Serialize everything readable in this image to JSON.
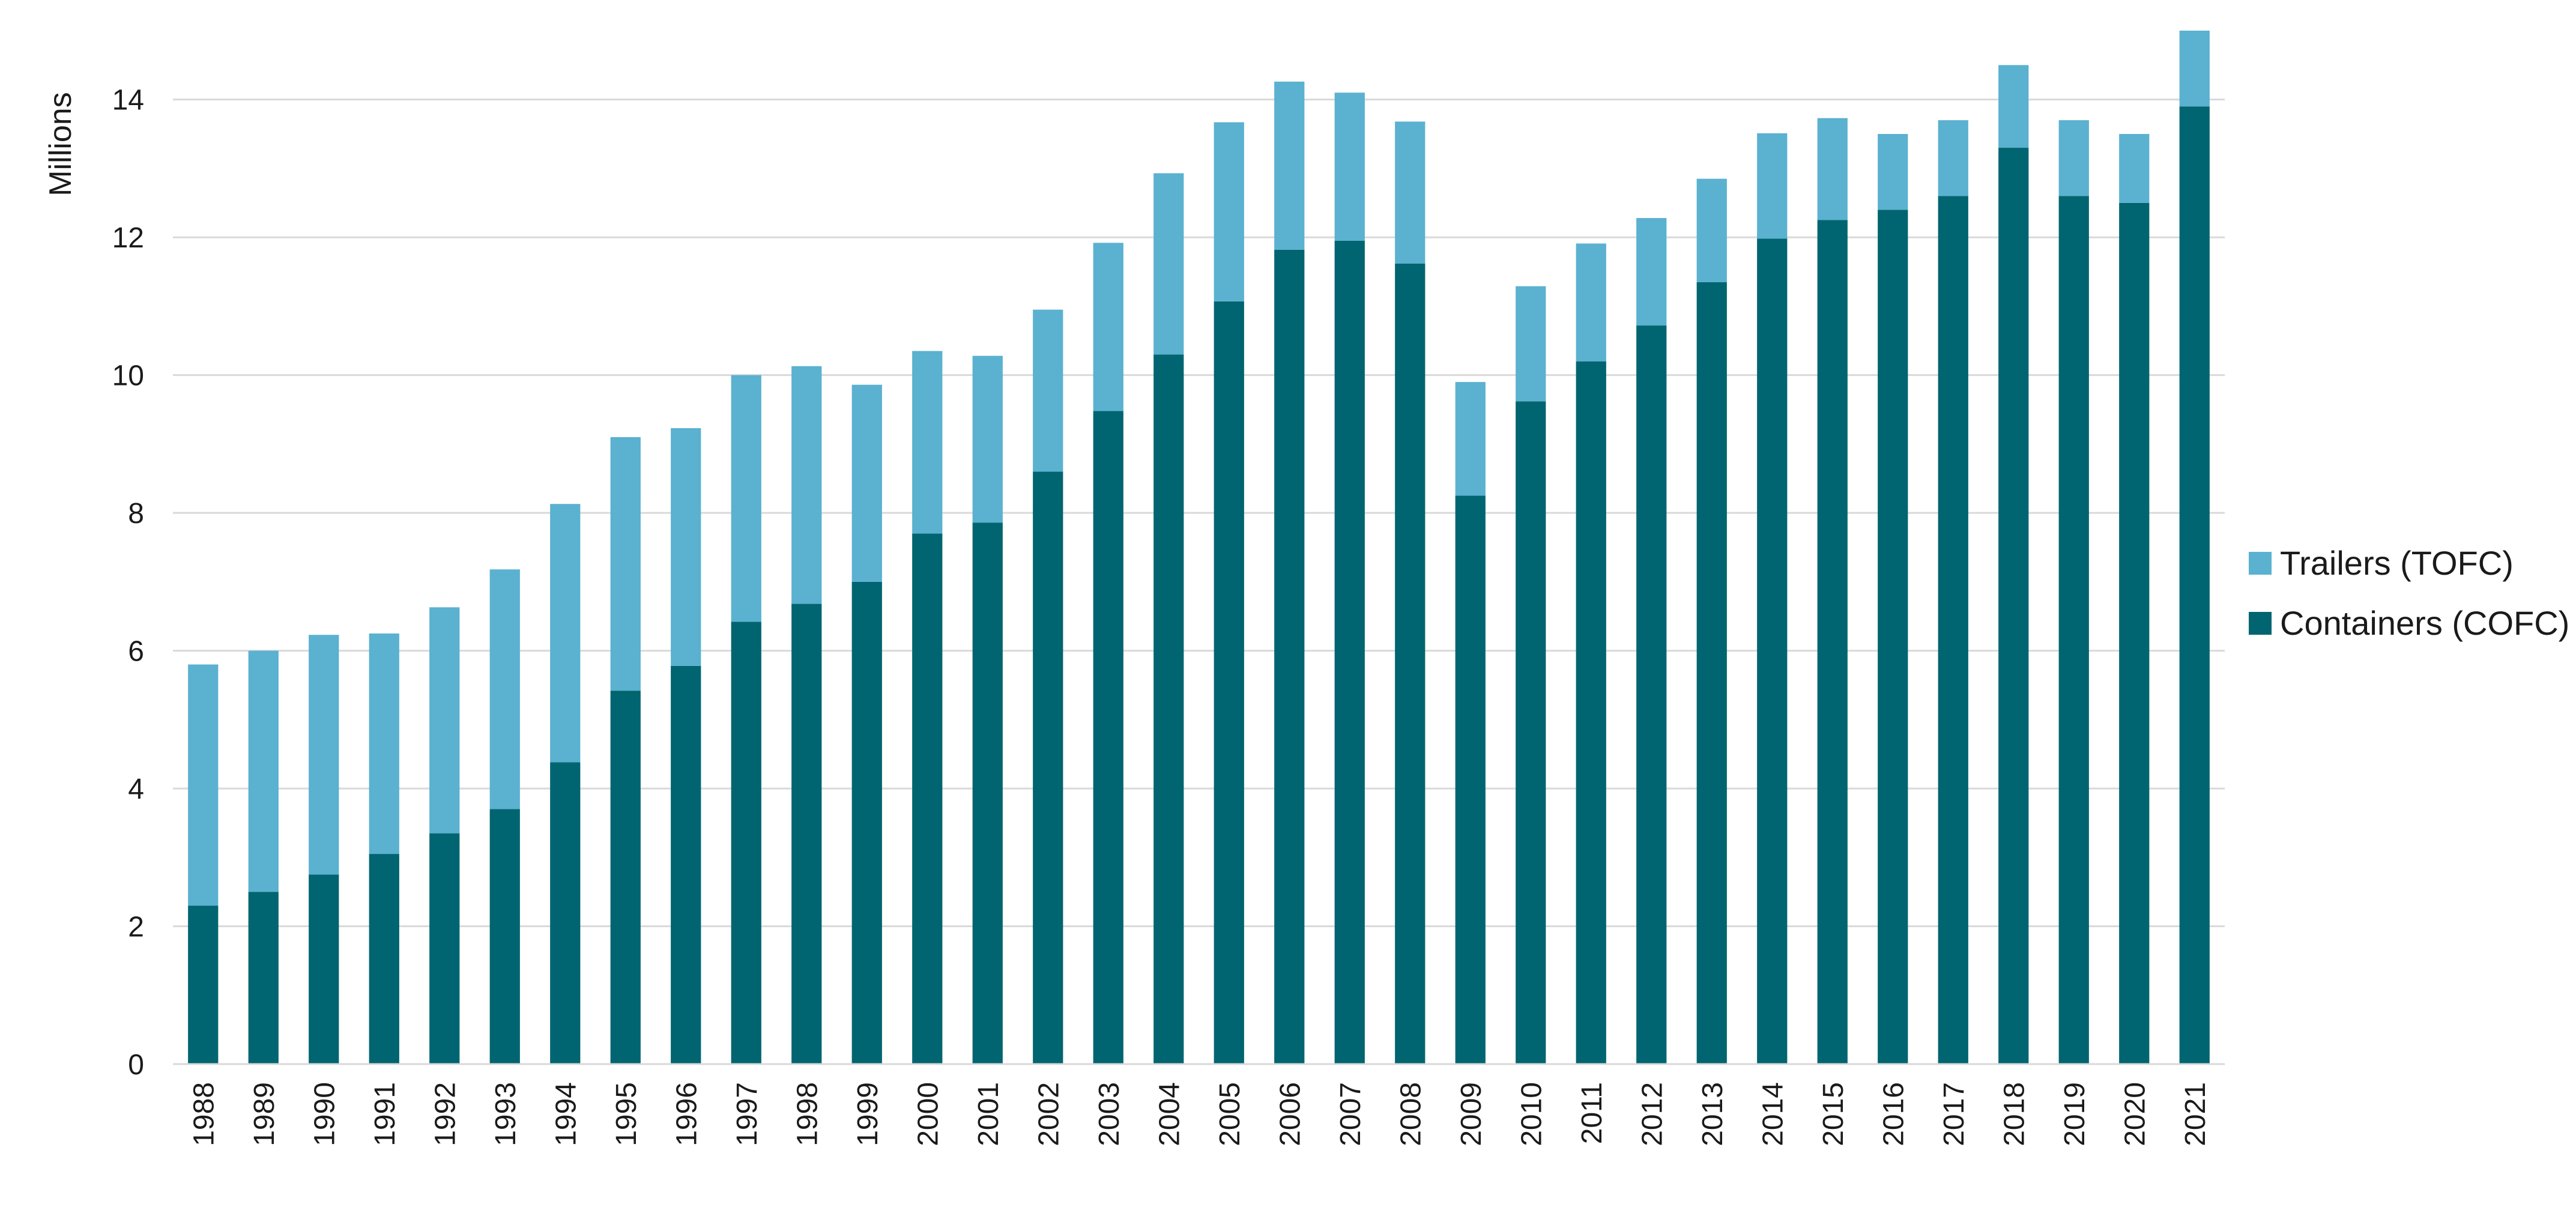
{
  "chart_data": {
    "type": "bar",
    "stacked": true,
    "title": "",
    "xlabel": "",
    "ylabel": "Millions",
    "ylim": [
      0,
      15
    ],
    "yticks": [
      0,
      2,
      4,
      6,
      8,
      10,
      12,
      14
    ],
    "grid": true,
    "legend_position": "right",
    "categories": [
      "1988",
      "1989",
      "1990",
      "1991",
      "1992",
      "1993",
      "1994",
      "1995",
      "1996",
      "1997",
      "1998",
      "1999",
      "2000",
      "2001",
      "2002",
      "2003",
      "2004",
      "2005",
      "2006",
      "2007",
      "2008",
      "2009",
      "2010",
      "2011",
      "2012",
      "2013",
      "2014",
      "2015",
      "2016",
      "2017",
      "2018",
      "2019",
      "2020",
      "2021"
    ],
    "series": [
      {
        "name": "Containers (COFC)",
        "color": "#006570",
        "values": [
          2.3,
          2.5,
          2.75,
          3.05,
          3.35,
          3.7,
          4.38,
          5.42,
          5.78,
          6.42,
          6.68,
          7.0,
          7.7,
          7.86,
          8.6,
          9.48,
          10.3,
          11.07,
          11.82,
          11.95,
          11.62,
          8.25,
          9.62,
          10.2,
          10.72,
          11.35,
          11.98,
          12.25,
          12.4,
          12.6,
          13.3,
          12.6,
          12.5,
          13.9
        ]
      },
      {
        "name": "Trailers (TOFC)",
        "color": "#5BB1D0",
        "values": [
          3.5,
          3.5,
          3.48,
          3.2,
          3.28,
          3.48,
          3.75,
          3.68,
          3.45,
          3.58,
          3.45,
          2.86,
          2.65,
          2.42,
          2.35,
          2.44,
          2.63,
          2.6,
          2.44,
          2.15,
          2.06,
          1.65,
          1.67,
          1.71,
          1.56,
          1.5,
          1.53,
          1.48,
          1.1,
          1.1,
          1.2,
          1.1,
          1.0,
          1.1
        ]
      }
    ],
    "legend": [
      "Trailers (TOFC)",
      "Containers (COFC)"
    ]
  }
}
